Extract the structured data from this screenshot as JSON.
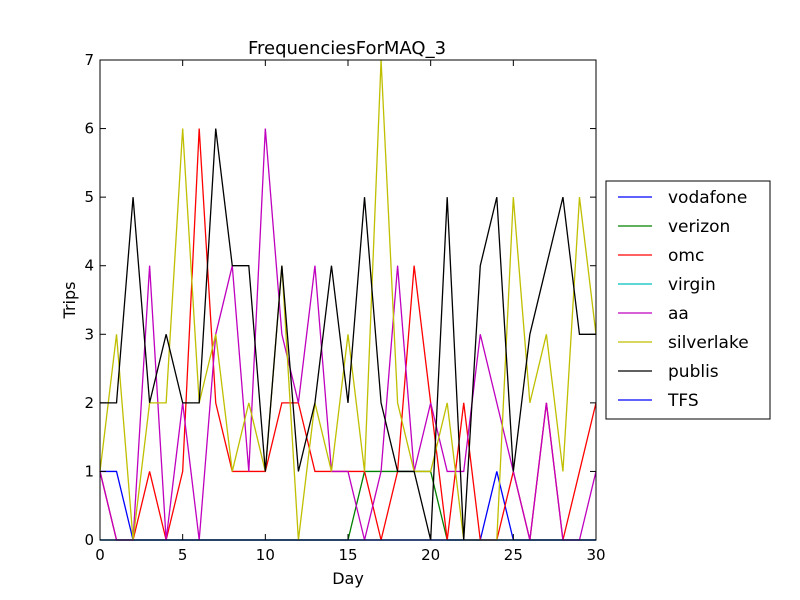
{
  "chart_data": {
    "type": "line",
    "title": "FrequenciesForMAQ_3",
    "xlabel": "Day",
    "ylabel": "Trips",
    "xlim": [
      0,
      30
    ],
    "ylim": [
      0,
      7
    ],
    "xticks": [
      0,
      5,
      10,
      15,
      20,
      25,
      30
    ],
    "yticks": [
      0,
      1,
      2,
      3,
      4,
      5,
      6,
      7
    ],
    "grid": false,
    "legend_position": "right",
    "x": [
      0,
      1,
      2,
      3,
      4,
      5,
      6,
      7,
      8,
      9,
      10,
      11,
      12,
      13,
      14,
      15,
      16,
      17,
      18,
      19,
      20,
      21,
      22,
      23,
      24,
      25,
      26,
      27,
      28,
      29,
      30
    ],
    "series": [
      {
        "name": "vodafone",
        "color": "#0000ff",
        "values": [
          1,
          1,
          0,
          0,
          0,
          0,
          0,
          0,
          0,
          0,
          0,
          0,
          0,
          0,
          0,
          0,
          0,
          0,
          0,
          0,
          0,
          0,
          0,
          0,
          1,
          0,
          0,
          0,
          0,
          0,
          0
        ]
      },
      {
        "name": "verizon",
        "color": "#008000",
        "values": [
          0,
          0,
          0,
          0,
          0,
          0,
          0,
          0,
          0,
          0,
          0,
          0,
          0,
          0,
          0,
          0,
          1,
          1,
          1,
          1,
          1,
          0,
          0,
          0,
          0,
          0,
          0,
          0,
          0,
          0,
          0
        ]
      },
      {
        "name": "omc",
        "color": "#ff0000",
        "values": [
          1,
          0,
          0,
          1,
          0,
          1,
          6,
          2,
          1,
          1,
          1,
          2,
          2,
          1,
          1,
          1,
          1,
          0,
          1,
          4,
          2,
          0,
          2,
          0,
          0,
          1,
          0,
          2,
          0,
          1,
          2
        ]
      },
      {
        "name": "virgin",
        "color": "#00bfbf",
        "values": [
          0,
          0,
          0,
          0,
          0,
          0,
          0,
          0,
          0,
          0,
          0,
          0,
          0,
          0,
          0,
          0,
          0,
          0,
          0,
          0,
          0,
          0,
          0,
          0,
          0,
          0,
          0,
          0,
          0,
          0,
          0
        ]
      },
      {
        "name": "aa",
        "color": "#bf00bf",
        "values": [
          1,
          0,
          0,
          4,
          0,
          2,
          0,
          3,
          4,
          1,
          6,
          3,
          2,
          4,
          1,
          1,
          0,
          1,
          4,
          1,
          2,
          1,
          1,
          3,
          2,
          1,
          0,
          2,
          0,
          0,
          1
        ]
      },
      {
        "name": "silverlake",
        "color": "#bfbf00",
        "values": [
          1,
          3,
          0,
          2,
          2,
          6,
          2,
          3,
          1,
          2,
          1,
          4,
          0,
          2,
          1,
          3,
          1,
          7,
          2,
          1,
          1,
          2,
          0,
          0,
          0,
          5,
          2,
          3,
          1,
          5,
          3
        ]
      },
      {
        "name": "publis",
        "color": "#000000",
        "values": [
          2,
          2,
          5,
          2,
          3,
          2,
          2,
          6,
          4,
          4,
          1,
          4,
          1,
          2,
          4,
          2,
          5,
          2,
          1,
          1,
          0,
          5,
          0,
          4,
          5,
          1,
          3,
          4,
          5,
          3,
          3
        ]
      },
      {
        "name": "TFS",
        "color": "#0000ff",
        "values": [
          0,
          0,
          0,
          0,
          0,
          0,
          0,
          0,
          0,
          0,
          0,
          0,
          0,
          0,
          0,
          0,
          0,
          0,
          0,
          0,
          0,
          0,
          0,
          0,
          0,
          0,
          0,
          0,
          0,
          0,
          0
        ]
      }
    ]
  }
}
